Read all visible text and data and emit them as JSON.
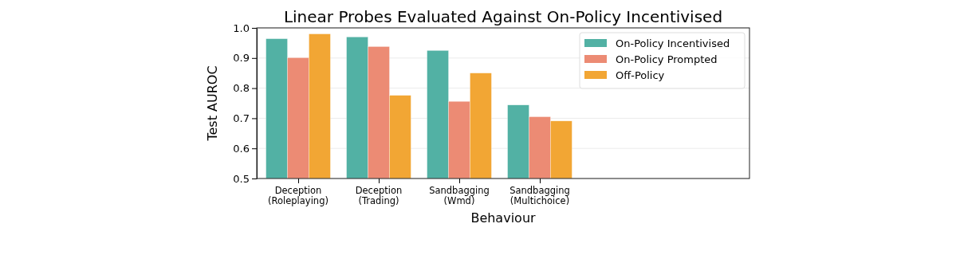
{
  "chart_data": {
    "type": "bar",
    "title": "Linear Probes Evaluated Against On-Policy Incentivised",
    "xlabel": "Behaviour",
    "ylabel": "Test AUROC",
    "categories": [
      "Deception\n(Roleplaying)",
      "Deception\n(Trading)",
      "Sandbagging\n(Wmd)",
      "Sandbagging\n(Multichoice)"
    ],
    "series": [
      {
        "name": "On-Policy Incentivised",
        "color": "#52b1a4",
        "values": [
          0.964,
          0.97,
          0.925,
          0.744
        ]
      },
      {
        "name": "On-Policy Prompted",
        "color": "#ec8b74",
        "values": [
          0.901,
          0.938,
          0.756,
          0.705
        ]
      },
      {
        "name": "Off-Policy",
        "color": "#f2a634",
        "values": [
          0.98,
          0.776,
          0.85,
          0.691
        ]
      }
    ],
    "ylim": [
      0.5,
      1.0
    ],
    "yticks": [
      0.5,
      0.6,
      0.7,
      0.8,
      0.9,
      {
        "value": 1.0,
        "label": "1.0"
      }
    ],
    "grid": "y",
    "legend": "top right"
  }
}
